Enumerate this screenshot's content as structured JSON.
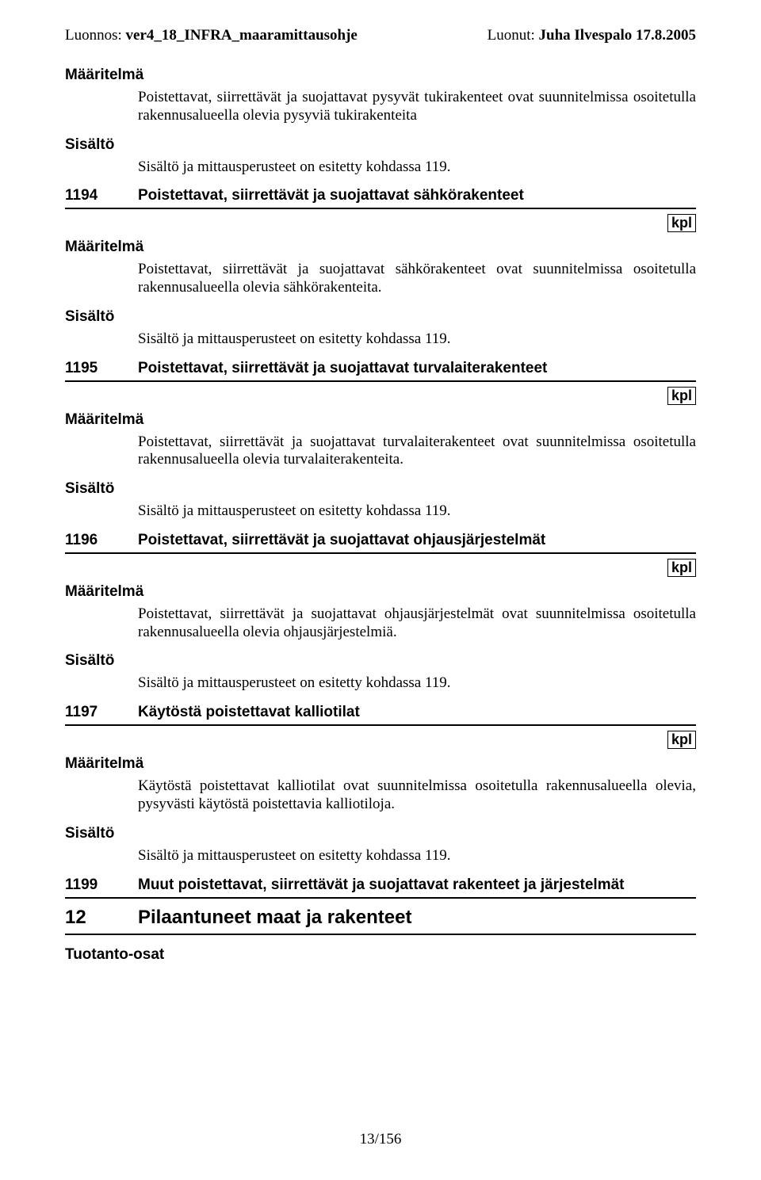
{
  "header": {
    "left_label": "Luonnos: ",
    "left_bold": "ver4_18_INFRA_maaramittausohje",
    "right_label": "Luonut: ",
    "right_bold": "Juha Ilvespalo 17.8.2005"
  },
  "labels": {
    "maaritelma": "Määritelmä",
    "sisalto": "Sisältö",
    "tuotanto": "Tuotanto-osat"
  },
  "intro": {
    "def_text": "Poistettavat, siirrettävät ja suojattavat pysyvät tukirakenteet ovat suunnitelmissa osoitetulla rakennusalueella olevia pysyviä tukirakenteita",
    "sis_text": "Sisältö ja mittausperusteet on esitetty kohdassa 119."
  },
  "entries": [
    {
      "code": "1194",
      "title": "Poistettavat, siirrettävät ja suojattavat sähkörakenteet",
      "unit": "kpl",
      "def_text": "Poistettavat, siirrettävät ja suojattavat sähkörakenteet ovat suunnitelmissa osoitetulla rakennusalueella olevia sähkörakenteita.",
      "sis_text": "Sisältö ja mittausperusteet on esitetty kohdassa 119."
    },
    {
      "code": "1195",
      "title": "Poistettavat, siirrettävät ja suojattavat turvalaiterakenteet",
      "unit": "kpl",
      "def_text": "Poistettavat, siirrettävät ja suojattavat turvalaiterakenteet ovat suunnitelmissa osoitetulla rakennusalueella olevia turvalaiterakenteita.",
      "sis_text": "Sisältö ja mittausperusteet on esitetty kohdassa 119."
    },
    {
      "code": "1196",
      "title": "Poistettavat, siirrettävät ja suojattavat ohjausjärjestelmät",
      "unit": "kpl",
      "def_text": "Poistettavat, siirrettävät ja suojattavat ohjausjärjestelmät ovat suunnitelmissa osoitetulla rakennusalueella olevia ohjausjärjestelmiä.",
      "sis_text": "Sisältö ja mittausperusteet on esitetty kohdassa 119."
    },
    {
      "code": "1197",
      "title": "Käytöstä poistettavat kalliotilat",
      "unit": "kpl",
      "def_text": "Käytöstä poistettavat kalliotilat ovat suunnitelmissa osoitetulla rakennusalueella olevia, pysyvästi käytöstä poistettavia kalliotiloja.",
      "sis_text": "Sisältö ja mittausperusteet on esitetty kohdassa 119."
    }
  ],
  "entry_1199": {
    "code": "1199",
    "title": "Muut poistettavat, siirrettävät ja suojattavat rakenteet ja järjestelmät"
  },
  "main_heading": {
    "code": "12",
    "title": "Pilaantuneet maat ja rakenteet"
  },
  "footer": {
    "page": "13/156"
  }
}
